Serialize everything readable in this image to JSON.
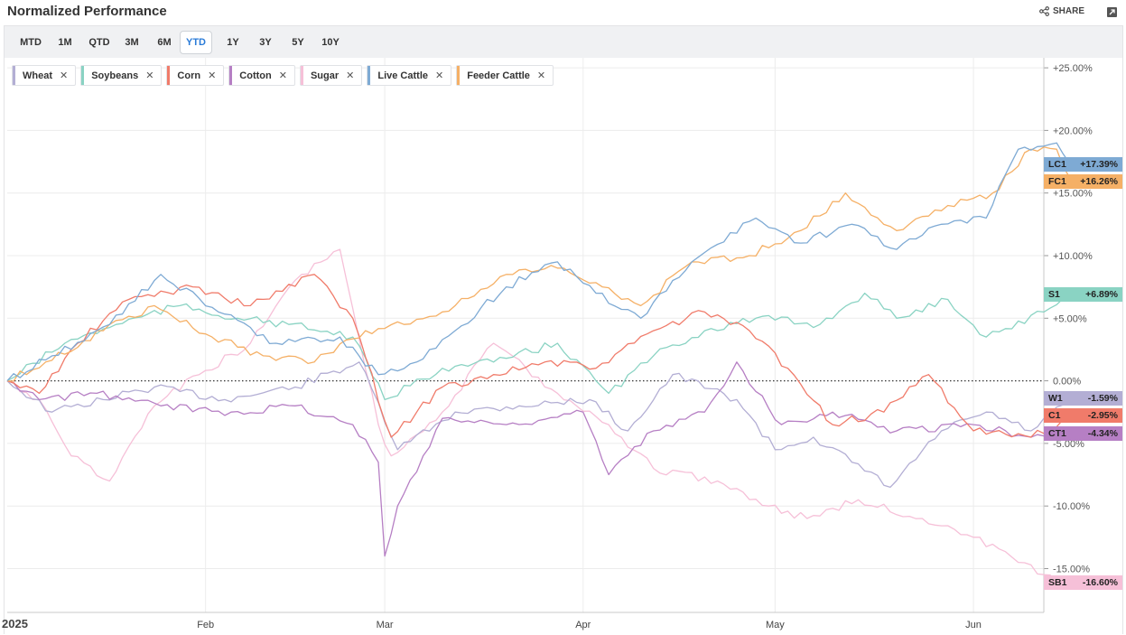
{
  "header": {
    "title": "Normalized Performance",
    "share_label": "SHARE"
  },
  "ranges": [
    "MTD",
    "1M",
    "QTD",
    "3M",
    "6M",
    "YTD",
    "1Y",
    "3Y",
    "5Y",
    "10Y"
  ],
  "active_range": "YTD",
  "colors": {
    "Wheat": "#b3aed4",
    "Soybeans": "#8ad3c3",
    "Corn": "#f07b6a",
    "Cotton": "#b67fc4",
    "Sugar": "#f6c0d8",
    "Live Cattle": "#7eaad4",
    "Feeder Cattle": "#f5b066",
    "accent": "#2a7bd8"
  },
  "chart_data": {
    "type": "line",
    "title": "Normalized Performance",
    "x_ticks": [
      "2025",
      "Feb",
      "Mar",
      "Apr",
      "May",
      "Jun"
    ],
    "y_ticks": [
      "+25.00%",
      "+20.00%",
      "+15.00%",
      "+10.00%",
      "+5.00%",
      "0.00%",
      "-5.00%",
      "-10.00%",
      "-15.00%"
    ],
    "ylim": [
      -18.5,
      25.8
    ],
    "baseline": 0,
    "grid": true,
    "legend": "top-left",
    "series": [
      {
        "name": "Wheat",
        "symbol": "W1",
        "last_label": "-1.59%",
        "last": -1.59,
        "points": [
          [
            "2025-01-01",
            0
          ],
          [
            "2025-01-08",
            -2.5
          ],
          [
            "2025-01-16",
            -1.5
          ],
          [
            "2025-01-24",
            -0.5
          ],
          [
            "2025-02-04",
            -1.5
          ],
          [
            "2025-02-15",
            -0.5
          ],
          [
            "2025-02-25",
            1.5
          ],
          [
            "2025-03-03",
            -5.5
          ],
          [
            "2025-03-12",
            -2.5
          ],
          [
            "2025-03-22",
            -2.0
          ],
          [
            "2025-04-02",
            -1.5
          ],
          [
            "2025-04-08",
            -4.0
          ],
          [
            "2025-04-15",
            0.5
          ],
          [
            "2025-04-25",
            -1.5
          ],
          [
            "2025-05-01",
            -5.5
          ],
          [
            "2025-05-07",
            -4.5
          ],
          [
            "2025-05-13",
            -6.5
          ],
          [
            "2025-05-19",
            -8.5
          ],
          [
            "2025-05-27",
            -4.0
          ],
          [
            "2025-06-03",
            -2.5
          ],
          [
            "2025-06-10",
            -4.0
          ],
          [
            "2025-06-16",
            -1.59
          ]
        ]
      },
      {
        "name": "Soybeans",
        "symbol": "S1",
        "last_label": "+6.89%",
        "last": 6.89,
        "points": [
          [
            "2025-01-01",
            0
          ],
          [
            "2025-01-10",
            3.0
          ],
          [
            "2025-01-18",
            4.5
          ],
          [
            "2025-01-28",
            6.0
          ],
          [
            "2025-02-06",
            5.0
          ],
          [
            "2025-02-14",
            4.5
          ],
          [
            "2025-02-24",
            3.5
          ],
          [
            "2025-03-01",
            -1.5
          ],
          [
            "2025-03-10",
            1.0
          ],
          [
            "2025-03-18",
            1.5
          ],
          [
            "2025-03-28",
            3.0
          ],
          [
            "2025-04-05",
            -1.0
          ],
          [
            "2025-04-12",
            2.0
          ],
          [
            "2025-04-20",
            4.0
          ],
          [
            "2025-04-28",
            5.0
          ],
          [
            "2025-05-08",
            4.5
          ],
          [
            "2025-05-15",
            7.0
          ],
          [
            "2025-05-20",
            5.0
          ],
          [
            "2025-05-28",
            6.5
          ],
          [
            "2025-06-03",
            3.5
          ],
          [
            "2025-06-12",
            5.5
          ],
          [
            "2025-06-16",
            6.89
          ]
        ]
      },
      {
        "name": "Corn",
        "symbol": "C1",
        "last_label": "-2.95%",
        "last": -2.95,
        "points": [
          [
            "2025-01-01",
            0
          ],
          [
            "2025-01-06",
            -1.0
          ],
          [
            "2025-01-12",
            3.0
          ],
          [
            "2025-01-20",
            6.5
          ],
          [
            "2025-01-30",
            7.5
          ],
          [
            "2025-02-08",
            6.0
          ],
          [
            "2025-02-18",
            8.5
          ],
          [
            "2025-02-24",
            5.0
          ],
          [
            "2025-03-02",
            -4.5
          ],
          [
            "2025-03-10",
            -0.5
          ],
          [
            "2025-03-18",
            0.5
          ],
          [
            "2025-03-26",
            1.5
          ],
          [
            "2025-04-03",
            1.0
          ],
          [
            "2025-04-12",
            4.0
          ],
          [
            "2025-04-20",
            5.5
          ],
          [
            "2025-04-27",
            4.0
          ],
          [
            "2025-05-03",
            1.0
          ],
          [
            "2025-05-10",
            -3.5
          ],
          [
            "2025-05-18",
            -2.5
          ],
          [
            "2025-05-25",
            0.5
          ],
          [
            "2025-06-01",
            -4.0
          ],
          [
            "2025-06-10",
            -4.5
          ],
          [
            "2025-06-16",
            -2.95
          ]
        ]
      },
      {
        "name": "Cotton",
        "symbol": "CT1",
        "last_label": "-4.34%",
        "last": -4.34,
        "points": [
          [
            "2025-01-01",
            0
          ],
          [
            "2025-01-06",
            -1.5
          ],
          [
            "2025-01-15",
            -1.0
          ],
          [
            "2025-01-25",
            -2.0
          ],
          [
            "2025-02-05",
            -2.5
          ],
          [
            "2025-02-15",
            -2.0
          ],
          [
            "2025-02-24",
            -3.5
          ],
          [
            "2025-02-28",
            -6.5
          ],
          [
            "2025-03-01",
            -14.0
          ],
          [
            "2025-03-03",
            -10.0
          ],
          [
            "2025-03-10",
            -3.0
          ],
          [
            "2025-03-20",
            -3.5
          ],
          [
            "2025-04-01",
            -2.5
          ],
          [
            "2025-04-05",
            -7.5
          ],
          [
            "2025-04-12",
            -4.0
          ],
          [
            "2025-04-20",
            -2.5
          ],
          [
            "2025-04-25",
            1.5
          ],
          [
            "2025-05-02",
            -3.5
          ],
          [
            "2025-05-10",
            -2.5
          ],
          [
            "2025-05-20",
            -4.0
          ],
          [
            "2025-06-01",
            -3.5
          ],
          [
            "2025-06-10",
            -4.5
          ],
          [
            "2025-06-16",
            -4.34
          ]
        ]
      },
      {
        "name": "Sugar",
        "symbol": "SB1",
        "last_label": "-16.60%",
        "last": -16.6,
        "points": [
          [
            "2025-01-01",
            0
          ],
          [
            "2025-01-06",
            -1.5
          ],
          [
            "2025-01-11",
            -6.0
          ],
          [
            "2025-01-17",
            -8.0
          ],
          [
            "2025-01-24",
            -2.0
          ],
          [
            "2025-01-31",
            0.5
          ],
          [
            "2025-02-08",
            3.0
          ],
          [
            "2025-02-16",
            8.5
          ],
          [
            "2025-02-22",
            10.5
          ],
          [
            "2025-02-28",
            -3.5
          ],
          [
            "2025-03-02",
            -6.0
          ],
          [
            "2025-03-10",
            -2.5
          ],
          [
            "2025-03-18",
            3.0
          ],
          [
            "2025-03-28",
            -1.0
          ],
          [
            "2025-04-05",
            -3.5
          ],
          [
            "2025-04-12",
            -7.0
          ],
          [
            "2025-04-22",
            -8.0
          ],
          [
            "2025-04-30",
            -10.0
          ],
          [
            "2025-05-06",
            -11.0
          ],
          [
            "2025-05-14",
            -9.5
          ],
          [
            "2025-05-24",
            -11.0
          ],
          [
            "2025-06-01",
            -12.5
          ],
          [
            "2025-06-08",
            -14.5
          ],
          [
            "2025-06-16",
            -16.6
          ]
        ]
      },
      {
        "name": "Live Cattle",
        "symbol": "LC1",
        "last_label": "+17.39%",
        "last": 17.39,
        "points": [
          [
            "2025-01-01",
            0
          ],
          [
            "2025-01-08",
            2.0
          ],
          [
            "2025-01-17",
            4.5
          ],
          [
            "2025-01-25",
            8.5
          ],
          [
            "2025-02-03",
            5.5
          ],
          [
            "2025-02-12",
            3.0
          ],
          [
            "2025-02-22",
            3.5
          ],
          [
            "2025-02-28",
            0.5
          ],
          [
            "2025-03-06",
            1.5
          ],
          [
            "2025-03-12",
            4.0
          ],
          [
            "2025-03-20",
            7.5
          ],
          [
            "2025-03-28",
            9.5
          ],
          [
            "2025-04-03",
            7.0
          ],
          [
            "2025-04-10",
            5.0
          ],
          [
            "2025-04-18",
            9.5
          ],
          [
            "2025-04-28",
            13.0
          ],
          [
            "2025-05-05",
            11.0
          ],
          [
            "2025-05-13",
            12.5
          ],
          [
            "2025-05-20",
            10.5
          ],
          [
            "2025-05-27",
            12.5
          ],
          [
            "2025-06-03",
            13.0
          ],
          [
            "2025-06-08",
            18.5
          ],
          [
            "2025-06-14",
            19.0
          ],
          [
            "2025-06-16",
            17.39
          ]
        ]
      },
      {
        "name": "Feeder Cattle",
        "symbol": "FC1",
        "last_label": "+16.26%",
        "last": 16.26,
        "points": [
          [
            "2025-01-01",
            0
          ],
          [
            "2025-01-07",
            1.5
          ],
          [
            "2025-01-16",
            4.0
          ],
          [
            "2025-01-24",
            6.0
          ],
          [
            "2025-02-02",
            3.5
          ],
          [
            "2025-02-10",
            2.0
          ],
          [
            "2025-02-18",
            1.5
          ],
          [
            "2025-02-26",
            4.0
          ],
          [
            "2025-03-04",
            4.5
          ],
          [
            "2025-03-12",
            6.0
          ],
          [
            "2025-03-20",
            8.5
          ],
          [
            "2025-03-28",
            9.0
          ],
          [
            "2025-04-04",
            7.5
          ],
          [
            "2025-04-10",
            6.0
          ],
          [
            "2025-04-18",
            9.5
          ],
          [
            "2025-04-27",
            10.0
          ],
          [
            "2025-05-05",
            12.0
          ],
          [
            "2025-05-12",
            15.0
          ],
          [
            "2025-05-20",
            12.0
          ],
          [
            "2025-05-28",
            14.0
          ],
          [
            "2025-06-04",
            15.0
          ],
          [
            "2025-06-10",
            18.5
          ],
          [
            "2025-06-14",
            18.5
          ],
          [
            "2025-06-16",
            16.26
          ]
        ]
      }
    ]
  }
}
